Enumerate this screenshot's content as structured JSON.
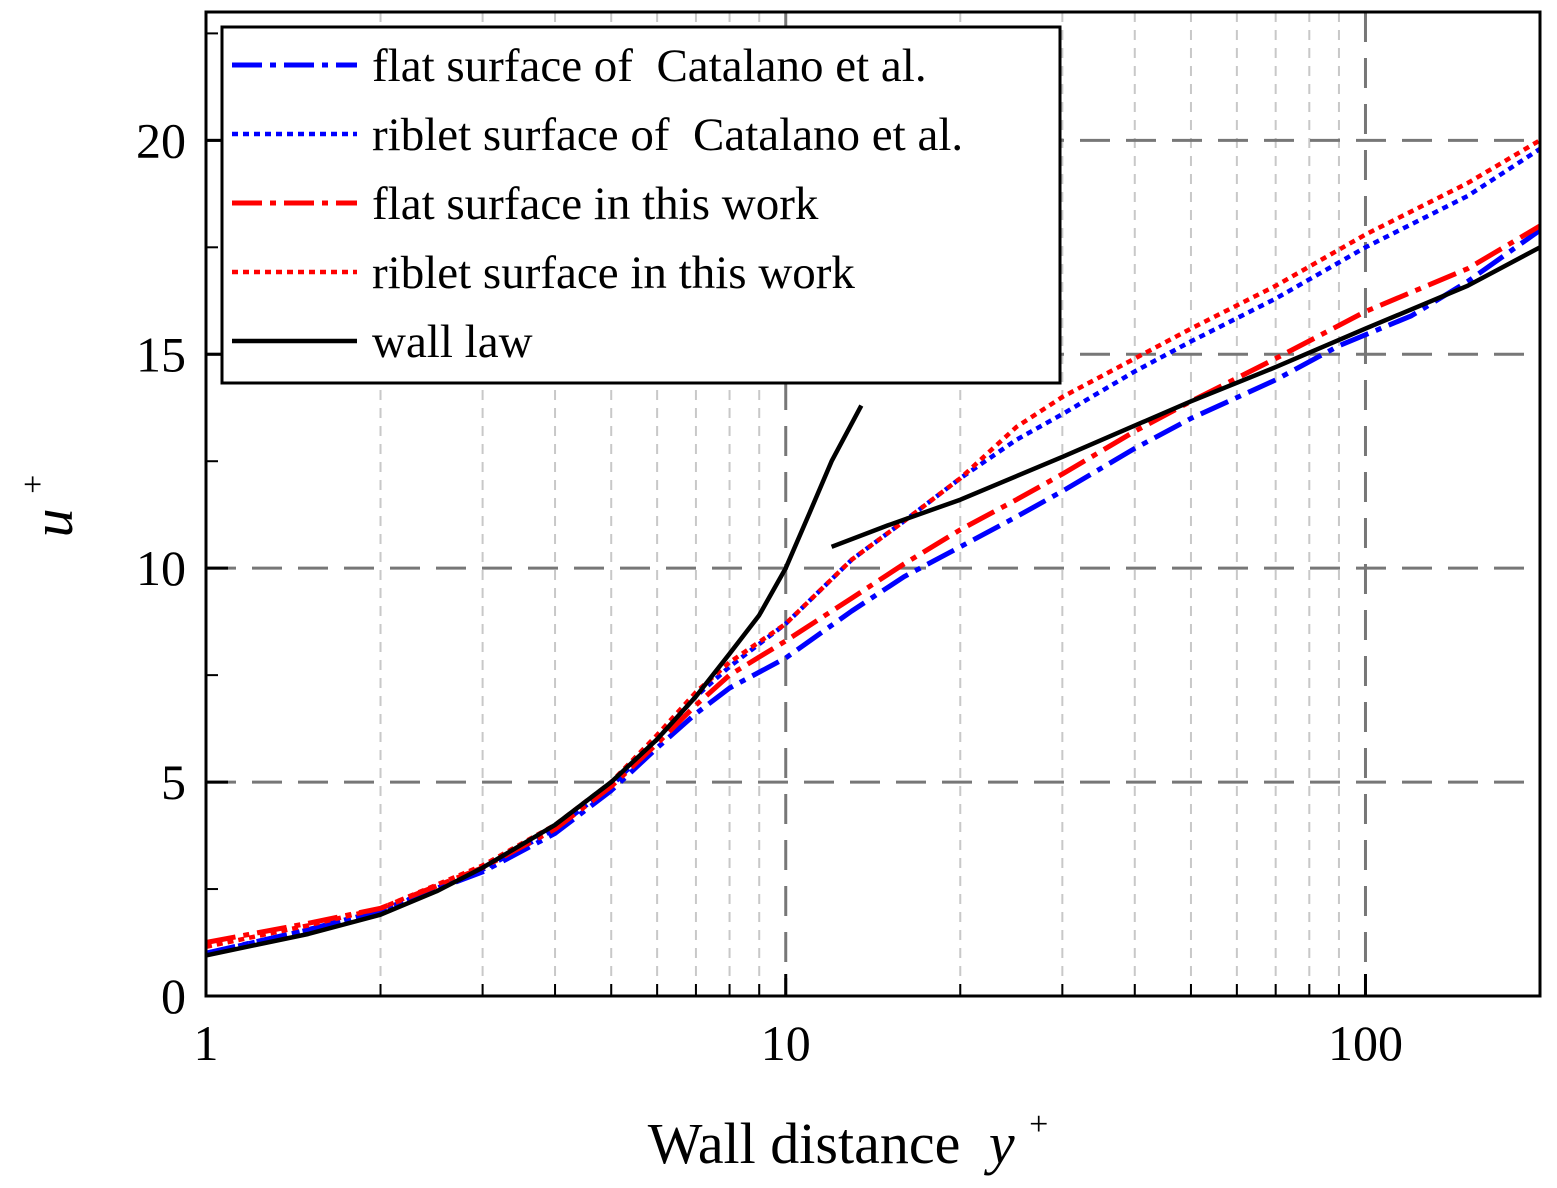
{
  "chart_data": {
    "type": "line",
    "title": "",
    "xlabel": "Wall distance",
    "xlabel_var": "y",
    "ylabel_var": "u",
    "label_superscript": "+",
    "xscale": "log",
    "xlim": [
      1,
      200
    ],
    "ylim": [
      0,
      23
    ],
    "xticks": [
      1,
      10,
      100
    ],
    "xtick_labels": [
      "1",
      "10",
      "100"
    ],
    "yticks": [
      0,
      5,
      10,
      15,
      20
    ],
    "ytick_labels": [
      "0",
      "5",
      "10",
      "15",
      "20"
    ],
    "grid": true,
    "legend_position": "top-left",
    "series": [
      {
        "name": "flat surface of  Catalano et al.",
        "color": "#0000ff",
        "style": "dashdot",
        "x": [
          1,
          1.5,
          2,
          3,
          4,
          5,
          6,
          7,
          8,
          10,
          13,
          16,
          20,
          25,
          30,
          40,
          50,
          70,
          90,
          120,
          150,
          200
        ],
        "y": [
          1.0,
          1.55,
          2.0,
          2.9,
          3.8,
          4.8,
          5.8,
          6.6,
          7.2,
          7.9,
          9.0,
          9.8,
          10.5,
          11.2,
          11.8,
          12.8,
          13.5,
          14.4,
          15.2,
          15.9,
          16.7,
          17.9
        ]
      },
      {
        "name": "riblet surface of  Catalano et al.",
        "color": "#0000ff",
        "style": "dotted",
        "x": [
          1,
          1.5,
          2,
          3,
          4,
          5,
          6,
          7,
          8,
          10,
          13,
          16,
          20,
          25,
          30,
          40,
          50,
          70,
          100,
          150,
          200
        ],
        "y": [
          1.0,
          1.55,
          2.0,
          2.95,
          3.9,
          4.9,
          6.0,
          7.0,
          7.7,
          8.7,
          10.2,
          11.1,
          12.1,
          13.0,
          13.6,
          14.6,
          15.3,
          16.3,
          17.5,
          18.7,
          19.8
        ]
      },
      {
        "name": "flat surface in this work",
        "color": "#ff0000",
        "style": "dashdot",
        "x": [
          1,
          1.5,
          2,
          3,
          4,
          5,
          6,
          7,
          8,
          10,
          13,
          16,
          20,
          25,
          30,
          40,
          50,
          70,
          100,
          150,
          200
        ],
        "y": [
          1.25,
          1.7,
          2.05,
          3.0,
          3.9,
          4.9,
          5.9,
          6.8,
          7.5,
          8.3,
          9.3,
          10.1,
          10.9,
          11.6,
          12.2,
          13.2,
          13.9,
          14.9,
          16.0,
          17.0,
          18.0
        ]
      },
      {
        "name": "riblet surface in this work",
        "color": "#ff0000",
        "style": "dotted",
        "x": [
          1,
          1.5,
          2,
          3,
          4,
          5,
          6,
          7,
          8,
          10,
          13,
          16,
          20,
          25,
          30,
          40,
          50,
          70,
          100,
          150,
          200
        ],
        "y": [
          1.15,
          1.65,
          2.05,
          3.05,
          4.0,
          5.0,
          6.1,
          7.1,
          7.8,
          8.7,
          10.2,
          11.1,
          12.1,
          13.3,
          14.0,
          14.9,
          15.6,
          16.6,
          17.8,
          19.0,
          20.0
        ]
      },
      {
        "name": "wall law",
        "color": "#000000",
        "style": "solid",
        "segments": [
          {
            "x": [
              1,
              1.5,
              2,
              2.5,
              3,
              4,
              5,
              6,
              7,
              8,
              9,
              10,
              11,
              12,
              13.5
            ],
            "y": [
              0.95,
              1.45,
              1.9,
              2.45,
              3.0,
              4.0,
              5.0,
              6.0,
              7.0,
              8.0,
              8.9,
              10.0,
              11.3,
              12.5,
              13.8
            ]
          },
          {
            "x": [
              12,
              15,
              20,
              30,
              50,
              70,
              100,
              150,
              200
            ],
            "y": [
              10.5,
              11.0,
              11.6,
              12.6,
              13.9,
              14.7,
              15.6,
              16.6,
              17.5
            ]
          }
        ]
      }
    ]
  }
}
